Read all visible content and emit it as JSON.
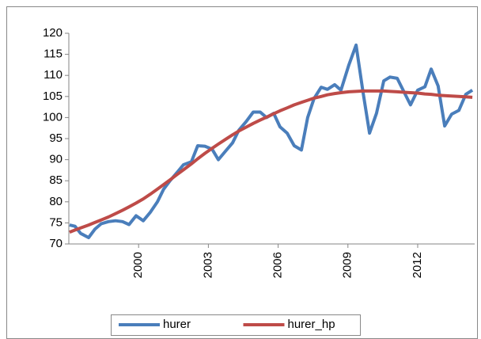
{
  "chart_data": {
    "type": "line",
    "x": [
      1997.03,
      1997.27,
      1997.51,
      1997.85,
      1998.12,
      1998.39,
      1998.7,
      1999.01,
      1999.31,
      1999.59,
      1999.89,
      2000.2,
      2000.5,
      2000.81,
      2001.08,
      2001.35,
      2001.66,
      2001.93,
      2002.27,
      2002.54,
      2002.85,
      2003.16,
      2003.43,
      2003.73,
      2004.04,
      2004.31,
      2004.62,
      2004.93,
      2005.23,
      2005.5,
      2005.81,
      2006.08,
      2006.39,
      2006.69,
      2007.0,
      2007.27,
      2007.54,
      2007.85,
      2008.12,
      2008.43,
      2008.7,
      2009.04,
      2009.35,
      2009.65,
      2009.93,
      2010.23,
      2010.54,
      2010.81,
      2011.12,
      2011.42,
      2011.69,
      2012.0,
      2012.31,
      2012.58,
      2012.88,
      2013.16,
      2013.46,
      2013.77,
      2014.07,
      2014.35
    ],
    "series": [
      {
        "name": "hurer",
        "color": "#4a7ebb",
        "values": [
          74.5,
          74.2,
          72.5,
          71.5,
          73.5,
          74.8,
          75.3,
          75.5,
          75.3,
          74.6,
          76.7,
          75.5,
          77.5,
          80,
          83,
          85,
          87,
          88.8,
          89.5,
          93.3,
          93.2,
          92.5,
          90,
          92,
          94,
          97,
          99,
          101.3,
          101.3,
          100,
          101,
          97.8,
          96.3,
          93.3,
          92.3,
          100,
          104.5,
          107.2,
          106.7,
          107.8,
          106.5,
          112.5,
          117.2,
          106,
          96.3,
          101,
          108.7,
          109.6,
          109.3,
          106,
          103,
          106.5,
          107.3,
          111.5,
          107.5,
          98,
          100.8,
          101.7,
          105.5,
          106.5
        ]
      },
      {
        "name": "hurer_hp",
        "color": "#be4b48",
        "values": [
          72.8,
          73.3,
          73.8,
          74.5,
          75.1,
          75.7,
          76.4,
          77.2,
          78,
          78.8,
          79.7,
          80.7,
          81.8,
          83,
          84.1,
          85.2,
          86.5,
          87.6,
          89,
          90.2,
          91.5,
          92.7,
          93.7,
          94.8,
          95.9,
          96.8,
          97.7,
          98.6,
          99.4,
          100.1,
          100.9,
          101.6,
          102.3,
          103,
          103.6,
          104.1,
          104.6,
          105,
          105.4,
          105.7,
          105.9,
          106.1,
          106.2,
          106.3,
          106.3,
          106.3,
          106.3,
          106.2,
          106.1,
          106,
          105.9,
          105.8,
          105.6,
          105.5,
          105.3,
          105.2,
          105.1,
          105,
          104.9,
          104.8
        ]
      }
    ],
    "xlim": [
      1997,
      2014.45
    ],
    "xticks": [
      2000,
      2003,
      2006,
      2009,
      2012
    ],
    "ylim": [
      70,
      120
    ],
    "yticks": [
      70,
      75,
      80,
      85,
      90,
      95,
      100,
      105,
      110,
      115,
      120
    ],
    "legend": "bottom"
  }
}
